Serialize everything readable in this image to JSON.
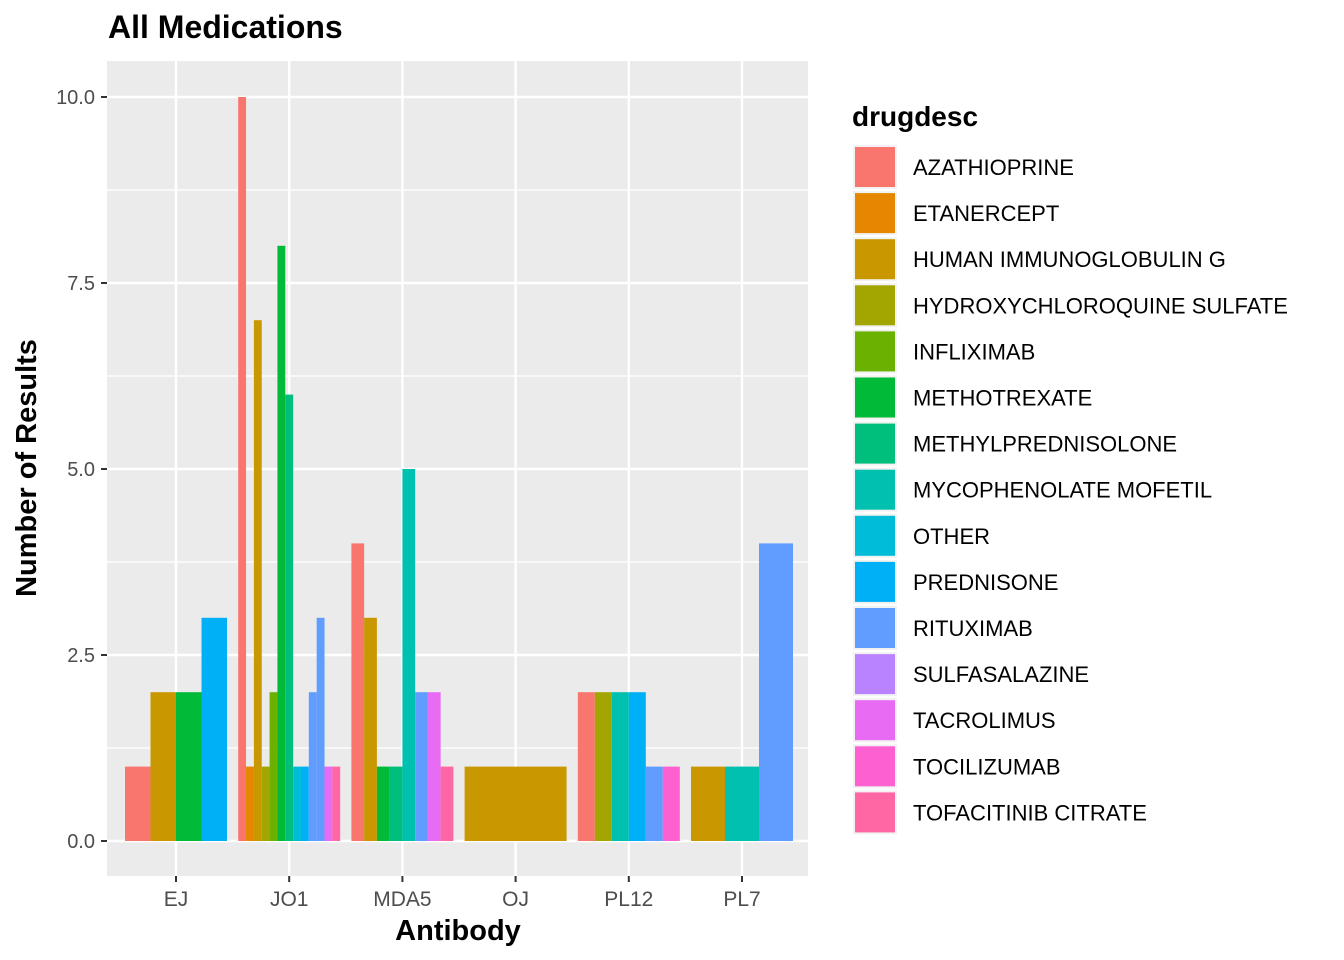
{
  "chart_data": {
    "type": "bar",
    "title": "All Medications",
    "xlabel": "Antibody",
    "ylabel": "Number of Results",
    "ylim": [
      0,
      10
    ],
    "yticks": [
      "0.0",
      "2.5",
      "5.0",
      "7.5",
      "10.0"
    ],
    "ytick_values": [
      0,
      2.5,
      5,
      7.5,
      10
    ],
    "grid": true,
    "legend_position": "right",
    "legend_title": "drugdesc",
    "categories": [
      "EJ",
      "JO1",
      "MDA5",
      "OJ",
      "PL12",
      "PL7"
    ],
    "series": [
      {
        "name": "AZATHIOPRINE",
        "color": "#F8766D"
      },
      {
        "name": "ETANERCEPT",
        "color": "#E58700"
      },
      {
        "name": "HUMAN IMMUNOGLOBULIN G",
        "color": "#C99800"
      },
      {
        "name": "HYDROXYCHLOROQUINE SULFATE",
        "color": "#A3A500"
      },
      {
        "name": "INFLIXIMAB",
        "color": "#6BB100"
      },
      {
        "name": "METHOTREXATE",
        "color": "#00BA38"
      },
      {
        "name": "METHYLPREDNISOLONE",
        "color": "#00BF7D"
      },
      {
        "name": "MYCOPHENOLATE MOFETIL",
        "color": "#00C0AF"
      },
      {
        "name": "OTHER",
        "color": "#00BCD8"
      },
      {
        "name": "PREDNISONE",
        "color": "#00B0F6"
      },
      {
        "name": "RITUXIMAB",
        "color": "#619CFF"
      },
      {
        "name": "SULFASALAZINE",
        "color": "#B983FF"
      },
      {
        "name": "TACROLIMUS",
        "color": "#E76BF3"
      },
      {
        "name": "TOCILIZUMAB",
        "color": "#FD61D1"
      },
      {
        "name": "TOFACITINIB CITRATE",
        "color": "#FF67A4"
      }
    ],
    "bars": {
      "EJ": [
        {
          "drug": "AZATHIOPRINE",
          "value": 1
        },
        {
          "drug": "HUMAN IMMUNOGLOBULIN G",
          "value": 2
        },
        {
          "drug": "METHOTREXATE",
          "value": 2
        },
        {
          "drug": "PREDNISONE",
          "value": 3
        }
      ],
      "JO1": [
        {
          "drug": "AZATHIOPRINE",
          "value": 10
        },
        {
          "drug": "ETANERCEPT",
          "value": 1
        },
        {
          "drug": "HUMAN IMMUNOGLOBULIN G",
          "value": 7
        },
        {
          "drug": "HYDROXYCHLOROQUINE SULFATE",
          "value": 1
        },
        {
          "drug": "INFLIXIMAB",
          "value": 2
        },
        {
          "drug": "METHOTREXATE",
          "value": 8
        },
        {
          "drug": "METHYLPREDNISOLONE",
          "value": 6
        },
        {
          "drug": "OTHER",
          "value": 1
        },
        {
          "drug": "PREDNISONE",
          "value": 1
        },
        {
          "drug": "RITUXIMAB",
          "value": 2
        },
        {
          "drug": "RITUXIMAB",
          "value": 3
        },
        {
          "drug": "TACROLIMUS",
          "value": 1
        },
        {
          "drug": "TOFACITINIB CITRATE",
          "value": 1
        }
      ],
      "MDA5": [
        {
          "drug": "AZATHIOPRINE",
          "value": 4
        },
        {
          "drug": "HUMAN IMMUNOGLOBULIN G",
          "value": 3
        },
        {
          "drug": "METHOTREXATE",
          "value": 1
        },
        {
          "drug": "METHYLPREDNISOLONE",
          "value": 1
        },
        {
          "drug": "MYCOPHENOLATE MOFETIL",
          "value": 5
        },
        {
          "drug": "RITUXIMAB",
          "value": 2
        },
        {
          "drug": "TACROLIMUS",
          "value": 2
        },
        {
          "drug": "TOFACITINIB CITRATE",
          "value": 1
        }
      ],
      "OJ": [
        {
          "drug": "HUMAN IMMUNOGLOBULIN G",
          "value": 1
        }
      ],
      "PL12": [
        {
          "drug": "AZATHIOPRINE",
          "value": 2
        },
        {
          "drug": "HYDROXYCHLOROQUINE SULFATE",
          "value": 2
        },
        {
          "drug": "MYCOPHENOLATE MOFETIL",
          "value": 2
        },
        {
          "drug": "PREDNISONE",
          "value": 2
        },
        {
          "drug": "RITUXIMAB",
          "value": 1
        },
        {
          "drug": "TOCILIZUMAB",
          "value": 1
        }
      ],
      "PL7": [
        {
          "drug": "HUMAN IMMUNOGLOBULIN G",
          "value": 1
        },
        {
          "drug": "MYCOPHENOLATE MOFETIL",
          "value": 1
        },
        {
          "drug": "RITUXIMAB",
          "value": 4
        }
      ]
    }
  }
}
